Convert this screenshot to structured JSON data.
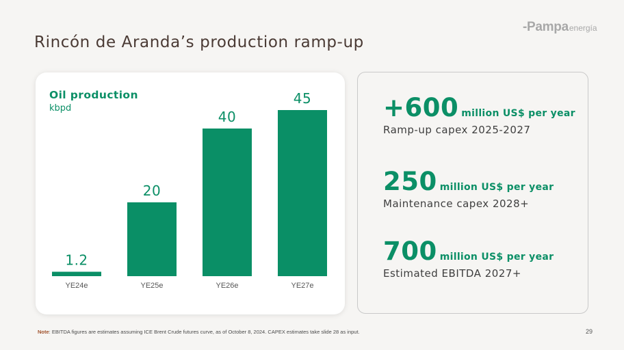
{
  "header": {
    "title": "Rincón de Aranda’s production ramp-up",
    "logo_brand": "-Pampa",
    "logo_sub": "energía"
  },
  "chart_data": {
    "type": "bar",
    "title": "Oil production",
    "ylabel": "kbpd",
    "categories": [
      "YE24e",
      "YE25e",
      "YE26e",
      "YE27e"
    ],
    "values": [
      1.2,
      20,
      40,
      45
    ],
    "value_labels": [
      "1.2",
      "20",
      "40",
      "45"
    ],
    "ylim": [
      0,
      45
    ],
    "grid": false,
    "bar_color": "#0a8f66"
  },
  "kpis": [
    {
      "value": "+600",
      "unit": "million US$ per year",
      "desc": "Ramp-up capex 2025-2027"
    },
    {
      "value": "250",
      "unit": "million US$ per year",
      "desc": "Maintenance capex 2028+"
    },
    {
      "value": "700",
      "unit": "million US$ per year",
      "desc": "Estimated EBITDA 2027+"
    }
  ],
  "footer": {
    "note_label": "Note",
    "note_text": ": EBITDA figures are estimates assuming ICE Brent Crude futures curve, as of October 8, 2024. CAPEX estimates take slide 28 as input.",
    "page_number": "29"
  }
}
